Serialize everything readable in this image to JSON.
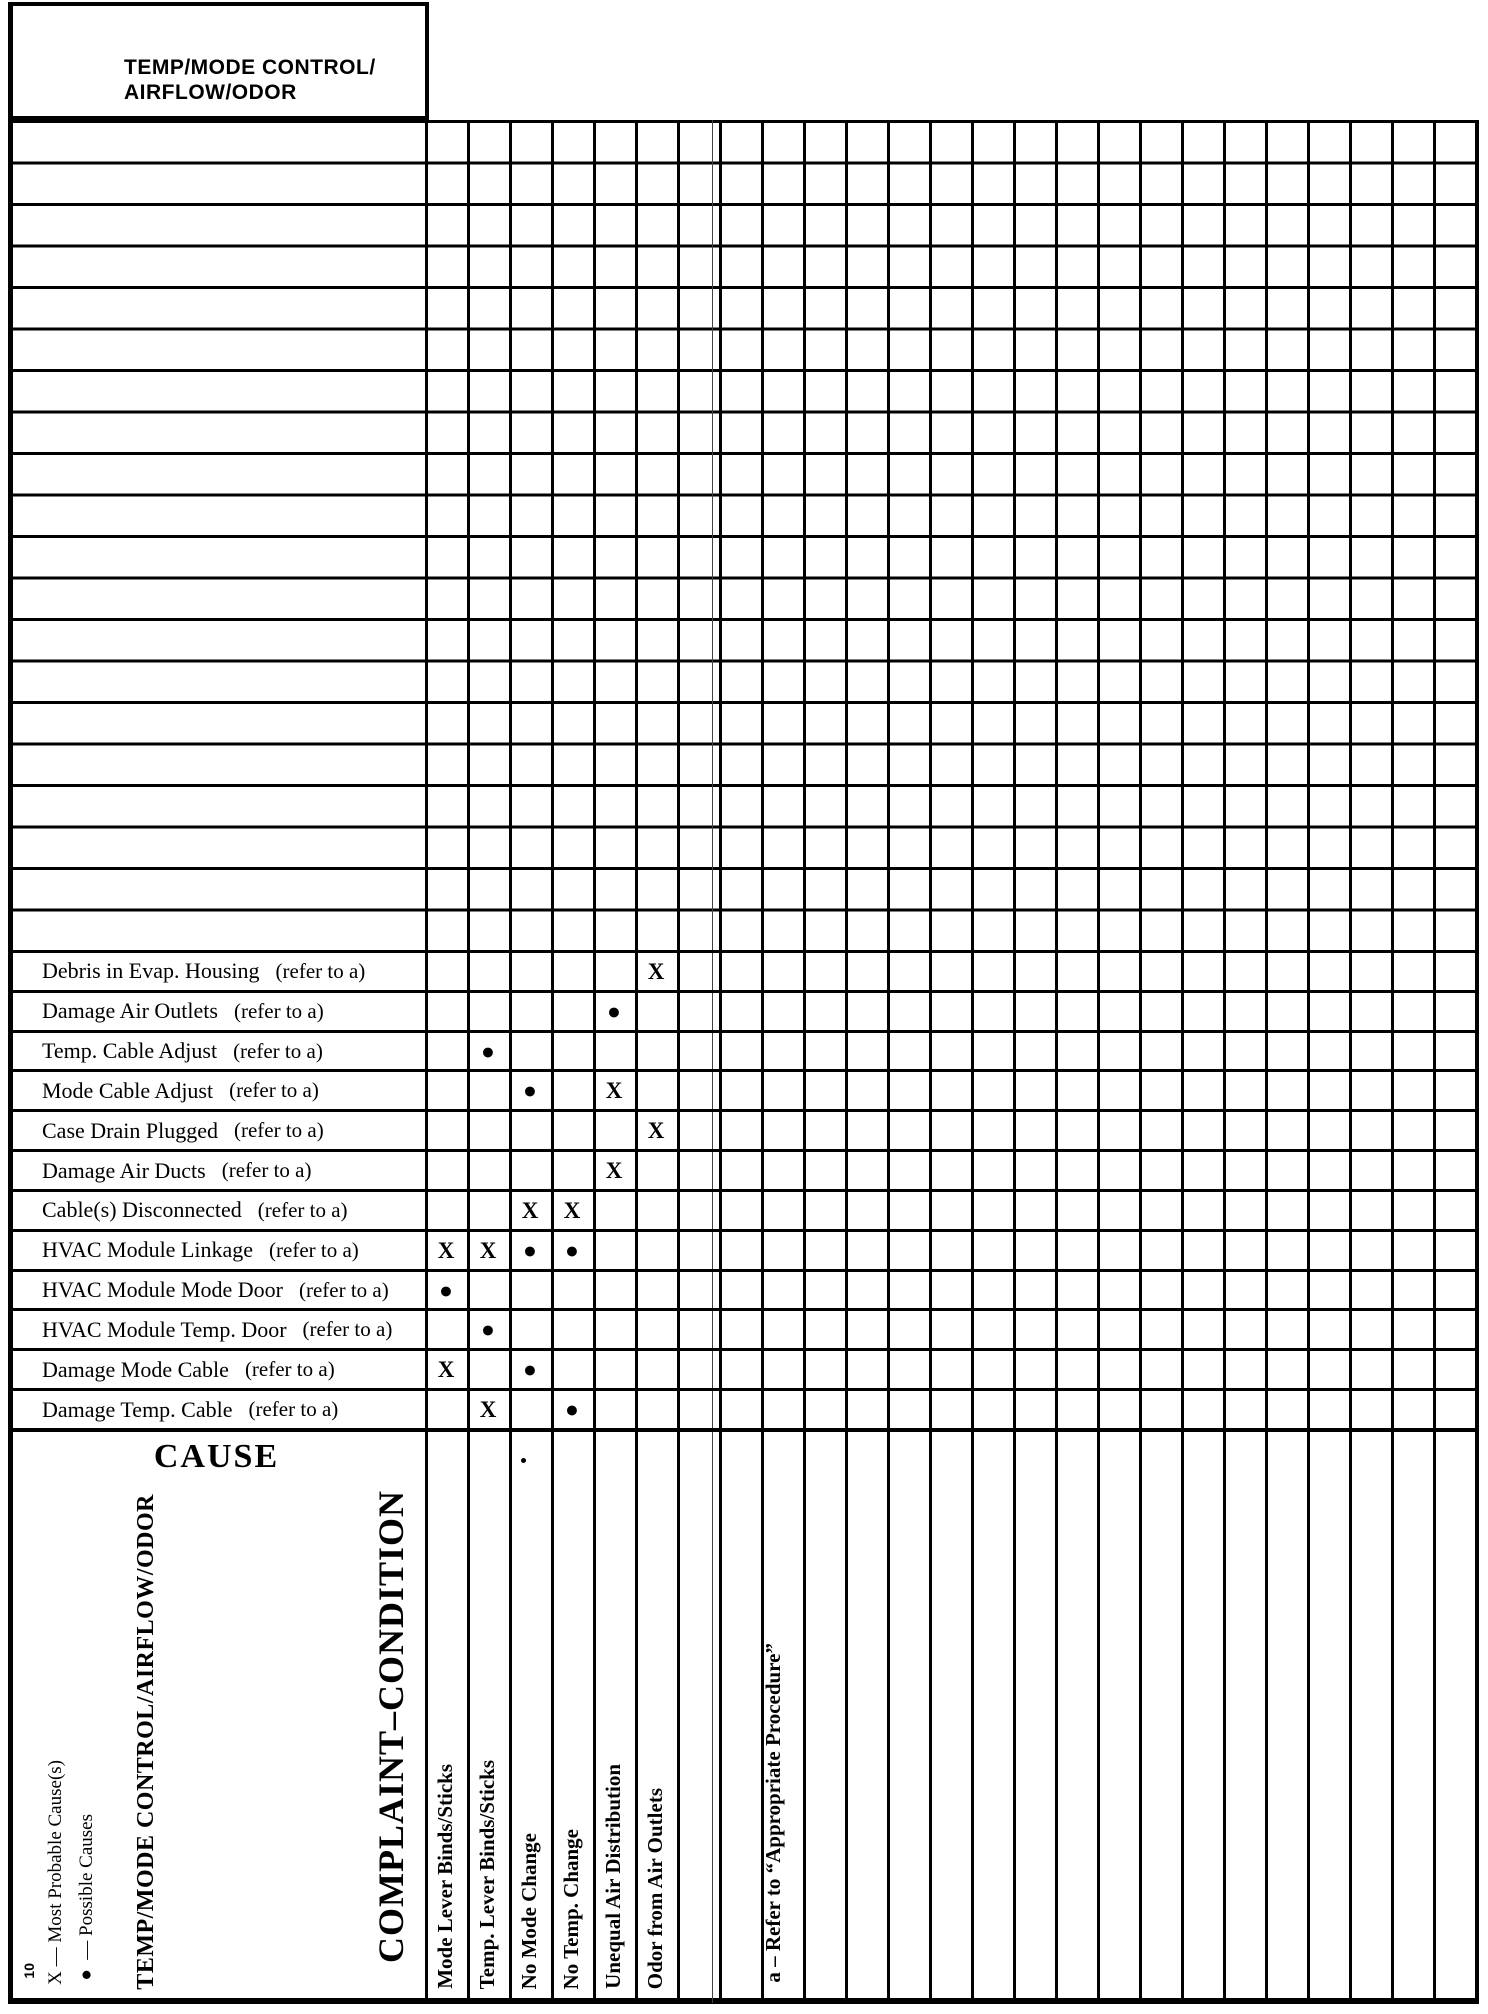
{
  "header_box": {
    "line1": "TEMP/MODE CONTROL/",
    "line2": "AIRFLOW/ODOR"
  },
  "matrix": {
    "rows": [
      {
        "label": "Debris in Evap. Housing",
        "note": "(refer to a)",
        "marks": [
          "",
          "",
          "",
          "",
          "",
          "X",
          ""
        ]
      },
      {
        "label": "Damage Air Outlets",
        "note": "(refer to a)",
        "marks": [
          "",
          "",
          "",
          "",
          "●",
          "",
          ""
        ]
      },
      {
        "label": "Temp. Cable Adjust",
        "note": "(refer to a)",
        "marks": [
          "",
          "●",
          "",
          "",
          "",
          "",
          ""
        ]
      },
      {
        "label": "Mode Cable Adjust",
        "note": "(refer to a)",
        "marks": [
          "",
          "",
          "●",
          "",
          "X",
          "",
          ""
        ]
      },
      {
        "label": "Case Drain Plugged",
        "note": "(refer to a)",
        "marks": [
          "",
          "",
          "",
          "",
          "",
          "X",
          ""
        ]
      },
      {
        "label": "Damage Air Ducts",
        "note": "(refer to a)",
        "marks": [
          "",
          "",
          "",
          "",
          "X",
          "",
          ""
        ]
      },
      {
        "label": "Cable(s) Disconnected",
        "note": "(refer to a)",
        "marks": [
          "",
          "",
          "X",
          "X",
          "",
          "",
          ""
        ]
      },
      {
        "label": "HVAC Module Linkage",
        "note": "(refer to a)",
        "marks": [
          "X",
          "X",
          "●",
          "●",
          "",
          "",
          ""
        ]
      },
      {
        "label": "HVAC Module Mode Door",
        "note": "(refer to a)",
        "marks": [
          "●",
          "",
          "",
          "",
          "",
          "",
          ""
        ]
      },
      {
        "label": "HVAC Module Temp. Door",
        "note": "(refer to a)",
        "marks": [
          "",
          "●",
          "",
          "",
          "",
          "",
          ""
        ]
      },
      {
        "label": "Damage Mode Cable",
        "note": "(refer to a)",
        "marks": [
          "X",
          "",
          "●",
          "",
          "",
          "",
          ""
        ]
      },
      {
        "label": "Damage Temp. Cable",
        "note": "(refer to a)",
        "marks": [
          "",
          "X",
          "",
          "●",
          "",
          "",
          ""
        ]
      }
    ]
  },
  "complaint_columns": [
    "Mode Lever Binds/Sticks",
    "Temp. Lever Binds/Sticks",
    "No Mode Change",
    "No Temp. Change",
    "Unequal Air Distribution",
    "Odor from Air Outlets"
  ],
  "cause_section": {
    "cause_heading": "CAUSE",
    "complaint_heading": "COMPLAINT–CONDITION",
    "category_label": "TEMP/MODE CONTROL/AIRFLOW/ODOR",
    "legend": [
      "X — Most Probable Cause(s)",
      "● — Possible Causes"
    ],
    "footnote": "a – Refer to “Appropriate Procedure”",
    "page_number": "10"
  },
  "colors": {
    "line": "#000000",
    "paper": "#ffffff"
  }
}
